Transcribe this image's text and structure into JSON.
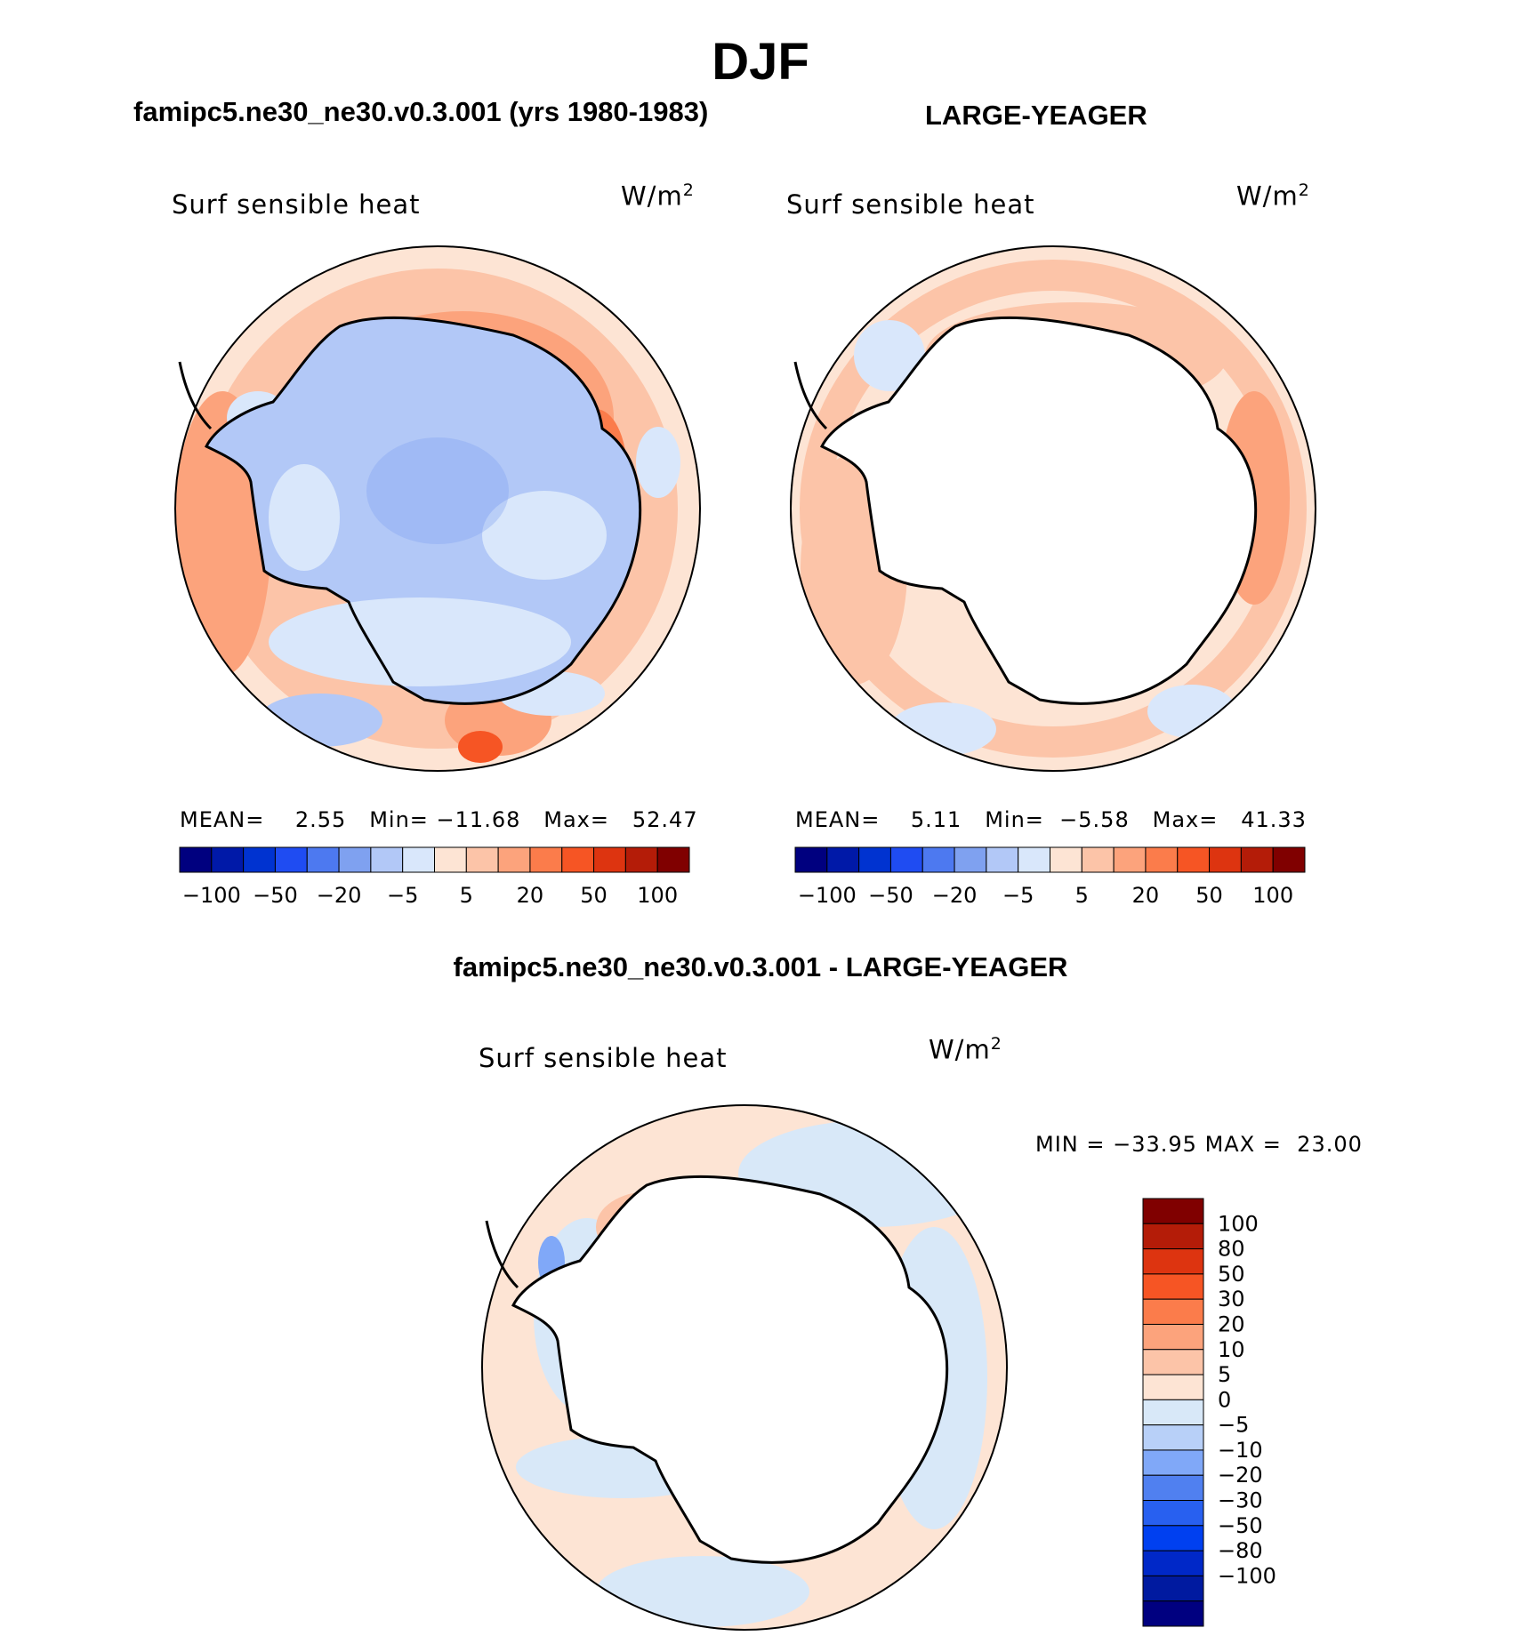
{
  "title": "DJF",
  "panels": [
    {
      "subtitle": "famipc5.ne30_ne30.v0.3.001 (yrs 1980-1983)",
      "variable": "Surf  sensible  heat",
      "units_base": "W/m",
      "units_exp": "2",
      "stats": {
        "mean_label": "MEAN=",
        "mean": "2.55",
        "min_label": "Min=",
        "min": "−11.68",
        "max_label": "Max=",
        "max": "52.47"
      }
    },
    {
      "subtitle": "LARGE-YEAGER",
      "variable": "Surf  sensible  heat",
      "units_base": "W/m",
      "units_exp": "2",
      "stats": {
        "mean_label": "MEAN=",
        "mean": "5.11",
        "min_label": "Min=",
        "min": "−5.58",
        "max_label": "Max=",
        "max": "41.33"
      }
    },
    {
      "subtitle": "famipc5.ne30_ne30.v0.3.001 - LARGE-YEAGER",
      "variable": "Surf  sensible  heat",
      "units_base": "W/m",
      "units_exp": "2",
      "stats": {
        "min_label": "MIN =",
        "min": "−33.95",
        "max_label": "MAX =",
        "max": "23.00"
      }
    }
  ],
  "colorbar_top": {
    "colors": [
      "#00007f",
      "#0019a8",
      "#0033d0",
      "#1f4cf2",
      "#4d79f0",
      "#7fa1f0",
      "#b2c8f7",
      "#d9e7fb",
      "#fde4d4",
      "#fcc4a8",
      "#fca37c",
      "#fb7c4b",
      "#f65524",
      "#dd3410",
      "#b41c08",
      "#800000"
    ],
    "labels": [
      "−100",
      "−50",
      "−20",
      "−5",
      "5",
      "20",
      "50",
      "100"
    ]
  },
  "colorbar_diff": {
    "colors": [
      "#000080",
      "#001aa0",
      "#0028c8",
      "#0040f0",
      "#2860f0",
      "#5080f0",
      "#80a8f8",
      "#b8d0f8",
      "#d8e8f8",
      "#fde4d4",
      "#fcc4a8",
      "#fca37c",
      "#fb7c4b",
      "#f65524",
      "#dd3410",
      "#b41c08",
      "#800000"
    ],
    "labels": [
      "100",
      "80",
      "50",
      "30",
      "20",
      "10",
      "5",
      "0",
      "−5",
      "−10",
      "−20",
      "−30",
      "−50",
      "−80",
      "−100"
    ]
  },
  "colors": {
    "land_mask": "#ffffff",
    "coast": "#000000"
  }
}
